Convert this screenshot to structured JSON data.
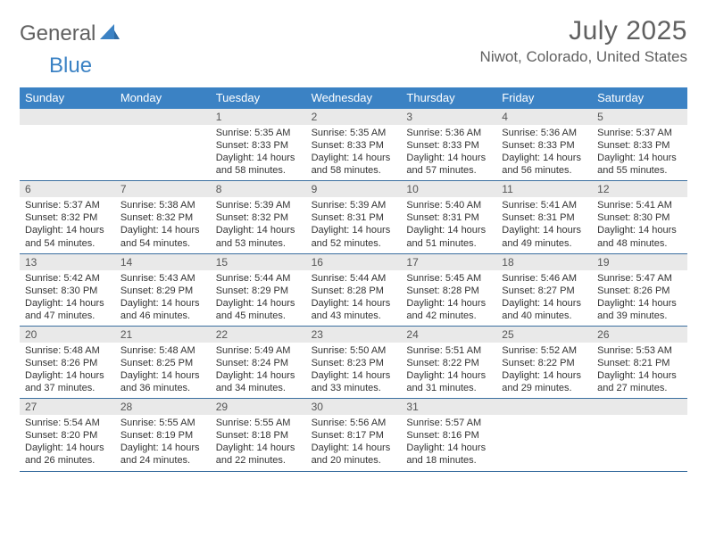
{
  "logo": {
    "word1": "General",
    "word2": "Blue"
  },
  "header": {
    "month_title": "July 2025",
    "location": "Niwot, Colorado, United States"
  },
  "colors": {
    "brand_blue": "#3b82c4",
    "header_text": "#606060",
    "daynum_bg": "#e9e9e9",
    "week_border": "#3b6fa0",
    "body_text": "#333333"
  },
  "weekdays": [
    "Sunday",
    "Monday",
    "Tuesday",
    "Wednesday",
    "Thursday",
    "Friday",
    "Saturday"
  ],
  "calendar": {
    "start_weekday_index": 2,
    "num_days": 31,
    "days": {
      "1": {
        "sunrise": "Sunrise: 5:35 AM",
        "sunset": "Sunset: 8:33 PM",
        "daylight": "Daylight: 14 hours and 58 minutes."
      },
      "2": {
        "sunrise": "Sunrise: 5:35 AM",
        "sunset": "Sunset: 8:33 PM",
        "daylight": "Daylight: 14 hours and 58 minutes."
      },
      "3": {
        "sunrise": "Sunrise: 5:36 AM",
        "sunset": "Sunset: 8:33 PM",
        "daylight": "Daylight: 14 hours and 57 minutes."
      },
      "4": {
        "sunrise": "Sunrise: 5:36 AM",
        "sunset": "Sunset: 8:33 PM",
        "daylight": "Daylight: 14 hours and 56 minutes."
      },
      "5": {
        "sunrise": "Sunrise: 5:37 AM",
        "sunset": "Sunset: 8:33 PM",
        "daylight": "Daylight: 14 hours and 55 minutes."
      },
      "6": {
        "sunrise": "Sunrise: 5:37 AM",
        "sunset": "Sunset: 8:32 PM",
        "daylight": "Daylight: 14 hours and 54 minutes."
      },
      "7": {
        "sunrise": "Sunrise: 5:38 AM",
        "sunset": "Sunset: 8:32 PM",
        "daylight": "Daylight: 14 hours and 54 minutes."
      },
      "8": {
        "sunrise": "Sunrise: 5:39 AM",
        "sunset": "Sunset: 8:32 PM",
        "daylight": "Daylight: 14 hours and 53 minutes."
      },
      "9": {
        "sunrise": "Sunrise: 5:39 AM",
        "sunset": "Sunset: 8:31 PM",
        "daylight": "Daylight: 14 hours and 52 minutes."
      },
      "10": {
        "sunrise": "Sunrise: 5:40 AM",
        "sunset": "Sunset: 8:31 PM",
        "daylight": "Daylight: 14 hours and 51 minutes."
      },
      "11": {
        "sunrise": "Sunrise: 5:41 AM",
        "sunset": "Sunset: 8:31 PM",
        "daylight": "Daylight: 14 hours and 49 minutes."
      },
      "12": {
        "sunrise": "Sunrise: 5:41 AM",
        "sunset": "Sunset: 8:30 PM",
        "daylight": "Daylight: 14 hours and 48 minutes."
      },
      "13": {
        "sunrise": "Sunrise: 5:42 AM",
        "sunset": "Sunset: 8:30 PM",
        "daylight": "Daylight: 14 hours and 47 minutes."
      },
      "14": {
        "sunrise": "Sunrise: 5:43 AM",
        "sunset": "Sunset: 8:29 PM",
        "daylight": "Daylight: 14 hours and 46 minutes."
      },
      "15": {
        "sunrise": "Sunrise: 5:44 AM",
        "sunset": "Sunset: 8:29 PM",
        "daylight": "Daylight: 14 hours and 45 minutes."
      },
      "16": {
        "sunrise": "Sunrise: 5:44 AM",
        "sunset": "Sunset: 8:28 PM",
        "daylight": "Daylight: 14 hours and 43 minutes."
      },
      "17": {
        "sunrise": "Sunrise: 5:45 AM",
        "sunset": "Sunset: 8:28 PM",
        "daylight": "Daylight: 14 hours and 42 minutes."
      },
      "18": {
        "sunrise": "Sunrise: 5:46 AM",
        "sunset": "Sunset: 8:27 PM",
        "daylight": "Daylight: 14 hours and 40 minutes."
      },
      "19": {
        "sunrise": "Sunrise: 5:47 AM",
        "sunset": "Sunset: 8:26 PM",
        "daylight": "Daylight: 14 hours and 39 minutes."
      },
      "20": {
        "sunrise": "Sunrise: 5:48 AM",
        "sunset": "Sunset: 8:26 PM",
        "daylight": "Daylight: 14 hours and 37 minutes."
      },
      "21": {
        "sunrise": "Sunrise: 5:48 AM",
        "sunset": "Sunset: 8:25 PM",
        "daylight": "Daylight: 14 hours and 36 minutes."
      },
      "22": {
        "sunrise": "Sunrise: 5:49 AM",
        "sunset": "Sunset: 8:24 PM",
        "daylight": "Daylight: 14 hours and 34 minutes."
      },
      "23": {
        "sunrise": "Sunrise: 5:50 AM",
        "sunset": "Sunset: 8:23 PM",
        "daylight": "Daylight: 14 hours and 33 minutes."
      },
      "24": {
        "sunrise": "Sunrise: 5:51 AM",
        "sunset": "Sunset: 8:22 PM",
        "daylight": "Daylight: 14 hours and 31 minutes."
      },
      "25": {
        "sunrise": "Sunrise: 5:52 AM",
        "sunset": "Sunset: 8:22 PM",
        "daylight": "Daylight: 14 hours and 29 minutes."
      },
      "26": {
        "sunrise": "Sunrise: 5:53 AM",
        "sunset": "Sunset: 8:21 PM",
        "daylight": "Daylight: 14 hours and 27 minutes."
      },
      "27": {
        "sunrise": "Sunrise: 5:54 AM",
        "sunset": "Sunset: 8:20 PM",
        "daylight": "Daylight: 14 hours and 26 minutes."
      },
      "28": {
        "sunrise": "Sunrise: 5:55 AM",
        "sunset": "Sunset: 8:19 PM",
        "daylight": "Daylight: 14 hours and 24 minutes."
      },
      "29": {
        "sunrise": "Sunrise: 5:55 AM",
        "sunset": "Sunset: 8:18 PM",
        "daylight": "Daylight: 14 hours and 22 minutes."
      },
      "30": {
        "sunrise": "Sunrise: 5:56 AM",
        "sunset": "Sunset: 8:17 PM",
        "daylight": "Daylight: 14 hours and 20 minutes."
      },
      "31": {
        "sunrise": "Sunrise: 5:57 AM",
        "sunset": "Sunset: 8:16 PM",
        "daylight": "Daylight: 14 hours and 18 minutes."
      }
    }
  }
}
